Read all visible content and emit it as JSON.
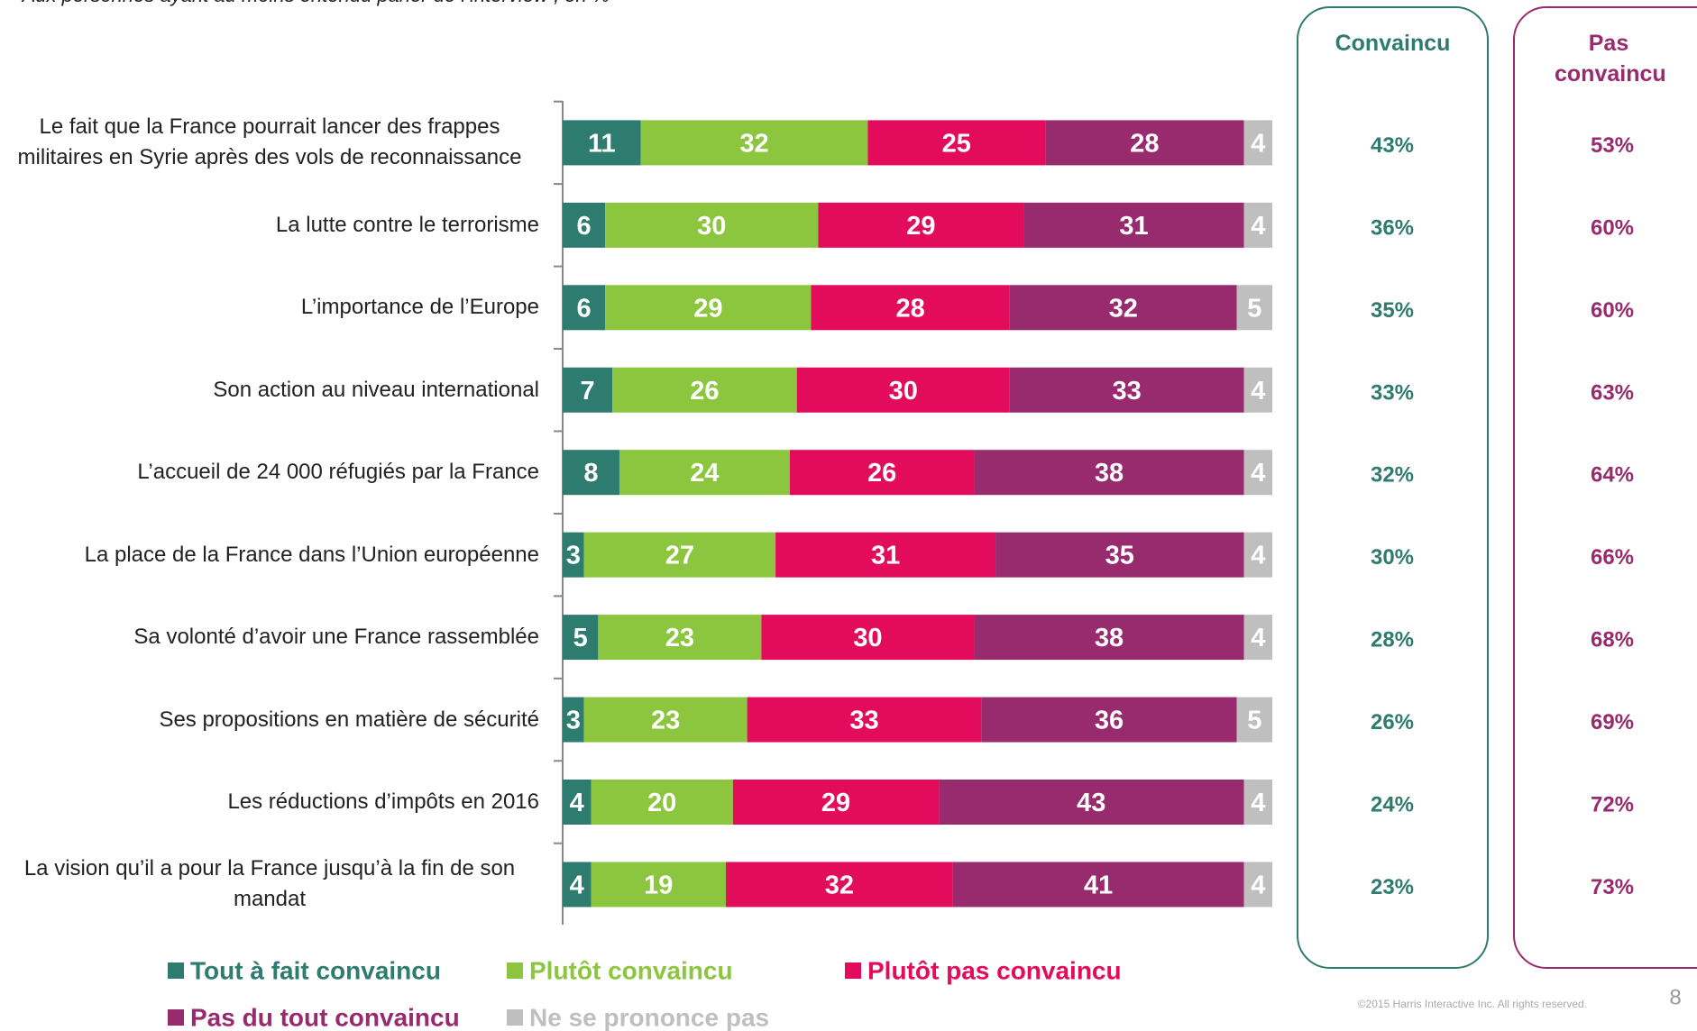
{
  "chart_data": {
    "type": "stacked-bar",
    "subtitle": "- Aux personnes ayant au moins entendu parler de l’interview , en % -",
    "categories": [
      "Le fait que la France pourrait lancer des frappes militaires en Syrie après des vols de reconnaissance",
      "La lutte contre le terrorisme",
      "L’importance de l’Europe",
      "Son action au niveau international",
      "L’accueil de 24 000 réfugiés par la France",
      "La place de la France dans l’Union européenne",
      "Sa volonté d’avoir une France rassemblée",
      "Ses propositions en matière de sécurité",
      "Les réductions d’impôts en 2016",
      "La vision qu’il a pour la France jusqu’à la fin de son mandat"
    ],
    "xlim": [
      0,
      100
    ],
    "series": [
      {
        "name": "Tout à fait convaincu",
        "color": "#2e7b70",
        "values": [
          11,
          6,
          6,
          7,
          8,
          3,
          5,
          3,
          4,
          4
        ]
      },
      {
        "name": "Plutôt convaincu",
        "color": "#8cc63f",
        "values": [
          32,
          30,
          29,
          26,
          24,
          27,
          23,
          23,
          20,
          19
        ]
      },
      {
        "name": "Plutôt pas convaincu",
        "color": "#e30b5c",
        "values": [
          25,
          29,
          28,
          30,
          26,
          31,
          30,
          33,
          29,
          32
        ]
      },
      {
        "name": "Pas du tout convaincu",
        "color": "#982a6e",
        "values": [
          28,
          31,
          32,
          33,
          38,
          35,
          38,
          36,
          43,
          41
        ]
      },
      {
        "name": "Ne se prononce pas",
        "color": "#bfbfbf",
        "values": [
          4,
          4,
          5,
          4,
          4,
          4,
          4,
          5,
          4,
          4
        ]
      }
    ],
    "summary": [
      {
        "name": "Convaincu",
        "color": "#2e7b70",
        "values": [
          43,
          36,
          35,
          33,
          32,
          30,
          28,
          26,
          24,
          23
        ],
        "value_labels": [
          "43%",
          "36%",
          "35%",
          "33%",
          "32%",
          "30%",
          "28%",
          "26%",
          "24%",
          "23%"
        ]
      },
      {
        "name": "Pas convaincu",
        "color": "#982a6e",
        "values": [
          53,
          60,
          60,
          63,
          64,
          66,
          68,
          69,
          72,
          73
        ],
        "value_labels": [
          "53%",
          "60%",
          "60%",
          "63%",
          "64%",
          "66%",
          "68%",
          "69%",
          "72%",
          "73%"
        ]
      }
    ],
    "copyright": "©2015 Harris Interactive Inc. All rights reserved.",
    "page_number": "8"
  }
}
